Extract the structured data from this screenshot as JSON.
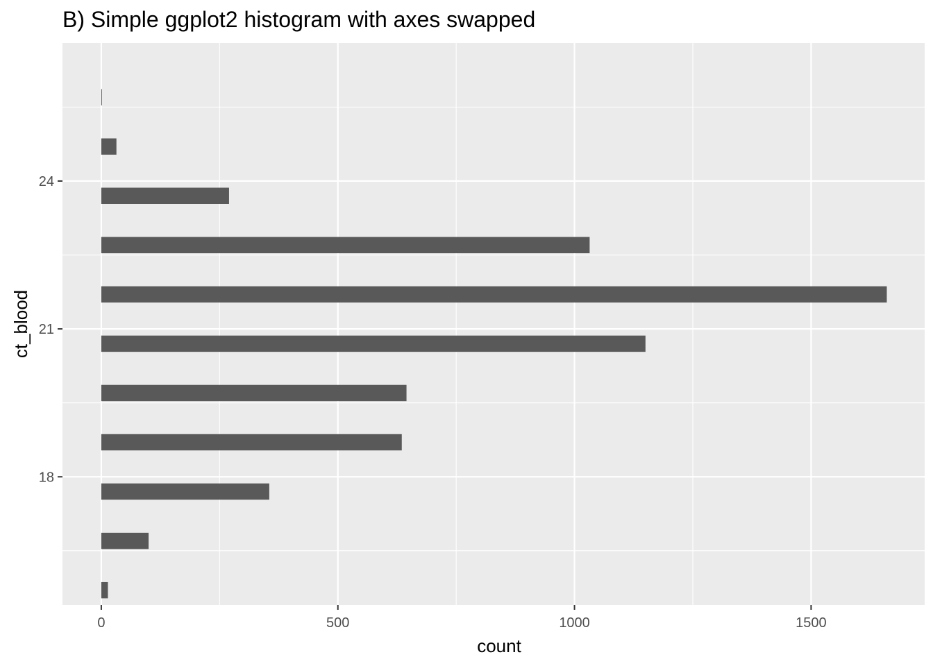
{
  "chart_data": {
    "type": "bar",
    "orientation": "horizontal",
    "title": "B) Simple ggplot2 histogram with axes swapped",
    "xlabel": "count",
    "ylabel": "ct_blood",
    "x_ticks": [
      0,
      500,
      1000,
      1500
    ],
    "y_ticks": [
      18,
      21,
      24
    ],
    "xlim": [
      -82,
      1740
    ],
    "ylim": [
      15.4,
      26.8
    ],
    "grid": true,
    "bar_height": 0.33,
    "bins": [
      {
        "y": 15.7,
        "count": 14
      },
      {
        "y": 16.7,
        "count": 100
      },
      {
        "y": 17.7,
        "count": 355
      },
      {
        "y": 18.7,
        "count": 635
      },
      {
        "y": 19.7,
        "count": 645
      },
      {
        "y": 20.7,
        "count": 1150
      },
      {
        "y": 21.7,
        "count": 1660
      },
      {
        "y": 22.7,
        "count": 1032
      },
      {
        "y": 23.7,
        "count": 270
      },
      {
        "y": 24.7,
        "count": 32
      },
      {
        "y": 25.7,
        "count": 1
      }
    ],
    "colors": {
      "panel_bg": "#ebebeb",
      "grid": "#ffffff",
      "bar": "#595959",
      "tick": "#333333",
      "tick_label": "#4d4d4d"
    }
  }
}
